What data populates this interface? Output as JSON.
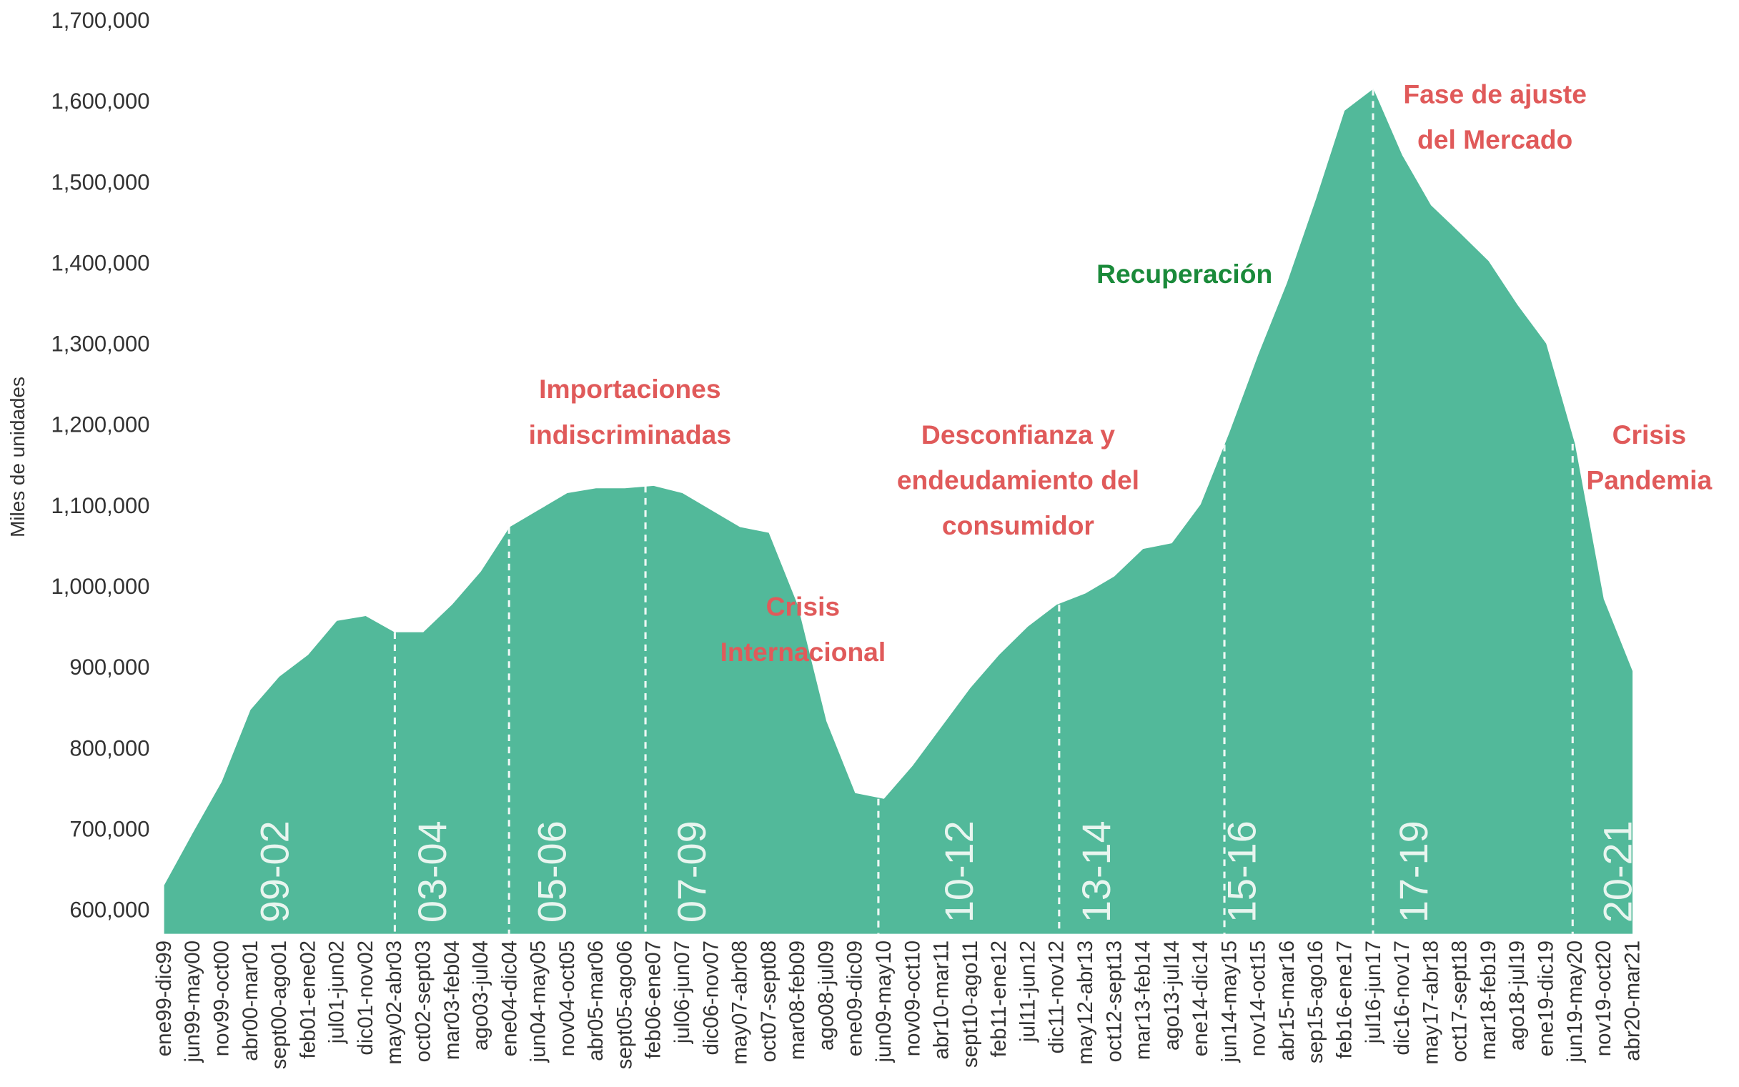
{
  "chart_data": {
    "type": "area",
    "y_label": "Miles de unidades",
    "color": "#52b99a",
    "categories": [
      "ene99-dic99",
      "jun99-may00",
      "nov99-oct00",
      "abr00-mar01",
      "sept00-ago01",
      "feb01-ene02",
      "jul01-jun02",
      "dic01-nov02",
      "may02-abr03",
      "oct02-sept03",
      "mar03-feb04",
      "ago03-jul04",
      "ene04-dic04",
      "jun04-may05",
      "nov04-oct05",
      "abr05-mar06",
      "sept05-ago06",
      "feb06-ene07",
      "jul06-jun07",
      "dic06-nov07",
      "may07-abr08",
      "oct07-sept08",
      "mar08-feb09",
      "ago08-jul09",
      "ene09-dic09",
      "jun09-may10",
      "nov09-oct10",
      "abr10-mar11",
      "sept10-ago11",
      "feb11-ene12",
      "jul11-jun12",
      "dic11-nov12",
      "may12-abr13",
      "oct12-sept13",
      "mar13-feb14",
      "ago13-jul14",
      "ene14-dic14",
      "jun14-may15",
      "nov14-oct15",
      "abr15-mar16",
      "sep15-ago16",
      "feb16-ene17",
      "jul16-jun17",
      "dic16-nov17",
      "may17-abr18",
      "oct17-sept18",
      "mar18-feb19",
      "ago18-jul19",
      "ene19-dic19",
      "jun19-may20",
      "nov19-oct20",
      "abr20-mar21"
    ],
    "values": [
      630000,
      695000,
      758000,
      847000,
      888000,
      915000,
      957000,
      963000,
      943000,
      943000,
      977000,
      1018000,
      1073000,
      1094000,
      1115000,
      1121000,
      1121000,
      1124000,
      1115000,
      1094000,
      1073000,
      1066000,
      977000,
      833000,
      744000,
      737000,
      778000,
      826000,
      874000,
      915000,
      950000,
      977000,
      991000,
      1012000,
      1046000,
      1053000,
      1101000,
      1190000,
      1286000,
      1375000,
      1478000,
      1588000,
      1615000,
      1533000,
      1471000,
      1437000,
      1402000,
      1348000,
      1300000,
      1176000,
      984000,
      895000
    ],
    "ylim": [
      570000,
      1700000
    ],
    "yticks": [
      {
        "value": 600000,
        "label": "600,000"
      },
      {
        "value": 700000,
        "label": "700,000"
      },
      {
        "value": 800000,
        "label": "800,000"
      },
      {
        "value": 900000,
        "label": "900,000"
      },
      {
        "value": 1000000,
        "label": "1,000,000"
      },
      {
        "value": 1100000,
        "label": "1,100,000"
      },
      {
        "value": 1200000,
        "label": "1,200,000"
      },
      {
        "value": 1300000,
        "label": "1,300,000"
      },
      {
        "value": 1400000,
        "label": "1,400,000"
      },
      {
        "value": 1500000,
        "label": "1,500,000"
      },
      {
        "value": 1600000,
        "label": "1,600,000"
      },
      {
        "value": 1700000,
        "label": "1,700,000"
      }
    ],
    "periods": [
      "99-02",
      "03-04",
      "05-06",
      "07-09",
      "10-12",
      "13-14",
      "15-16",
      "17-19",
      "20-21"
    ],
    "annotations": [
      {
        "lines": [
          "Importaciones",
          "indiscriminadas"
        ],
        "color": "#e05a5a"
      },
      {
        "lines": [
          "Crisis",
          "Internacional"
        ],
        "color": "#e05a5a"
      },
      {
        "lines": [
          "Desconfianza y",
          "endeudamiento del",
          "consumidor"
        ],
        "color": "#e05a5a"
      },
      {
        "lines": [
          "Recuperación"
        ],
        "color": "#1a8a3a"
      },
      {
        "lines": [
          "Fase de ajuste",
          "del Mercado"
        ],
        "color": "#e05a5a"
      },
      {
        "lines": [
          "Crisis",
          "Pandemia"
        ],
        "color": "#e05a5a"
      }
    ]
  }
}
